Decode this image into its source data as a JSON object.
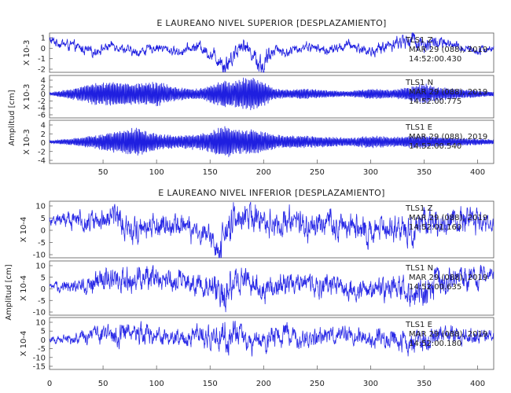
{
  "figures": [
    {
      "id": "superior",
      "title": "E LAUREANO NIVEL SUPERIOR [DESPLAZAMIENTO]",
      "ylabel": "Amplitud [cm]",
      "x_ticks": [
        "50",
        "100",
        "150",
        "200",
        "250",
        "300",
        "350",
        "400"
      ],
      "panels": [
        {
          "station": "TLS1",
          "channel": "Z",
          "date": "MAR 29 (088), 2019",
          "time": "14:52:00.430",
          "scale": "X 10-3",
          "y_ticks": [
            "1",
            "0",
            "-1",
            "-2"
          ]
        },
        {
          "station": "TLS1",
          "channel": "N",
          "date": "MAR 29 (088), 2019",
          "time": "14:52:00.775",
          "scale": "X 10-3",
          "y_ticks": [
            "4",
            "2",
            "0",
            "-2",
            "-4",
            "-6"
          ]
        },
        {
          "station": "TLS1",
          "channel": "E",
          "date": "MAR 29 (088), 2019",
          "time": "14:52:00.540",
          "scale": "X 10-3",
          "y_ticks": [
            "4",
            "2",
            "0",
            "-2",
            "-4"
          ]
        }
      ]
    },
    {
      "id": "inferior",
      "title": "E LAUREANO NIVEL INFERIOR [DESPLAZAMIENTO]",
      "ylabel": "Amplitud [cm]",
      "x_ticks": [
        "0",
        "50",
        "100",
        "150",
        "200",
        "250",
        "300",
        "350",
        "400"
      ],
      "panels": [
        {
          "station": "TLS1",
          "channel": "Z",
          "date": "MAR 29 (088), 2019",
          "time": "14:52:01.160",
          "scale": "X 10-4",
          "y_ticks": [
            "10",
            "5",
            "0",
            "-5",
            "-10"
          ]
        },
        {
          "station": "TLS1",
          "channel": "N",
          "date": "MAR 29 (088), 2019",
          "time": "14:52:00.635",
          "scale": "X 10-4",
          "y_ticks": [
            "10",
            "5",
            "0",
            "-5",
            "-10"
          ]
        },
        {
          "station": "TLS1",
          "channel": "E",
          "date": "MAR 29 (088), 2019",
          "time": "14:52:00.180",
          "scale": "X 10-4",
          "y_ticks": [
            "10",
            "5",
            "0",
            "-5",
            "-10",
            "-15"
          ]
        }
      ]
    }
  ],
  "chart_data": [
    {
      "type": "line",
      "title": "E LAUREANO NIVEL SUPERIOR [DESPLAZAMIENTO]",
      "ylabel": "Amplitud [cm]",
      "xlim": [
        0,
        415
      ],
      "series": [
        {
          "name": "TLS1 Z",
          "ylim": [
            -2.2,
            1.5
          ],
          "color": "#1f1fe0",
          "x": [
            0,
            20,
            40,
            60,
            80,
            100,
            120,
            140,
            150,
            160,
            165,
            170,
            180,
            190,
            200,
            210,
            220,
            240,
            260,
            280,
            300,
            320,
            340,
            350,
            360,
            380,
            400,
            415
          ],
          "y": [
            0.8,
            0.3,
            -0.3,
            0.4,
            -0.4,
            0.2,
            -0.3,
            0.3,
            -0.5,
            -1.0,
            -1.6,
            -0.8,
            0.6,
            -0.5,
            -1.8,
            0.2,
            -0.4,
            0.3,
            -0.2,
            0.4,
            -0.3,
            0.5,
            0.9,
            0.4,
            0.6,
            0.2,
            -0.1,
            0.0
          ],
          "envelope": [
            0.3,
            0.35,
            0.3,
            0.3,
            0.3,
            0.3,
            0.3,
            0.35,
            0.4,
            0.6,
            0.8,
            0.6,
            0.5,
            0.5,
            0.8,
            0.4,
            0.3,
            0.3,
            0.3,
            0.3,
            0.35,
            0.4,
            0.6,
            0.5,
            0.5,
            0.3,
            0.3,
            0.2
          ]
        },
        {
          "name": "TLS1 N",
          "ylim": [
            -6.5,
            5
          ],
          "color": "#1f1fe0",
          "x": [
            0,
            20,
            40,
            60,
            80,
            100,
            120,
            140,
            150,
            160,
            165,
            170,
            180,
            190,
            200,
            210,
            220,
            240,
            260,
            280,
            300,
            320,
            340,
            350,
            360,
            380,
            400,
            415
          ],
          "y": [
            0,
            0,
            0,
            0,
            0,
            0,
            0,
            0,
            0,
            0,
            0,
            0,
            0,
            0,
            0,
            0,
            0,
            0,
            0,
            0,
            0,
            0,
            0,
            0,
            0,
            0,
            0,
            0
          ],
          "envelope": [
            0.3,
            1.5,
            3.0,
            3.5,
            3.0,
            3.5,
            1.8,
            1.5,
            2.5,
            3.5,
            4.5,
            3.5,
            4.5,
            4.8,
            3.5,
            1.5,
            1.2,
            1.5,
            1.0,
            0.8,
            1.5,
            1.2,
            2.2,
            3.0,
            2.0,
            1.5,
            1.0,
            0.6
          ]
        },
        {
          "name": "TLS1 E",
          "ylim": [
            -5,
            5
          ],
          "color": "#1f1fe0",
          "x": [
            0,
            20,
            40,
            60,
            80,
            100,
            120,
            140,
            150,
            160,
            165,
            170,
            180,
            190,
            200,
            210,
            220,
            240,
            260,
            280,
            300,
            320,
            340,
            350,
            360,
            380,
            400,
            415
          ],
          "y": [
            0,
            0,
            0,
            0,
            0,
            0,
            0,
            0,
            0,
            0,
            0,
            0,
            0,
            0,
            0,
            0,
            0,
            0,
            0,
            0,
            0,
            0,
            0,
            0,
            0,
            0,
            0,
            0
          ],
          "envelope": [
            0.3,
            0.8,
            1.5,
            2.5,
            3.5,
            2.0,
            1.5,
            2.0,
            2.5,
            3.5,
            4.0,
            3.0,
            3.0,
            3.0,
            2.5,
            1.8,
            1.5,
            1.5,
            1.2,
            1.0,
            1.5,
            1.2,
            1.5,
            1.6,
            1.2,
            1.0,
            0.8,
            0.5
          ]
        }
      ]
    },
    {
      "type": "line",
      "title": "E LAUREANO NIVEL INFERIOR [DESPLAZAMIENTO]",
      "ylabel": "Amplitud [cm]",
      "xlim": [
        0,
        415
      ],
      "series": [
        {
          "name": "TLS1 Z",
          "ylim": [
            -12,
            10
          ],
          "color": "#2a2ae6",
          "x": [
            0,
            20,
            40,
            60,
            80,
            100,
            120,
            140,
            150,
            160,
            165,
            170,
            180,
            190,
            200,
            210,
            220,
            240,
            260,
            280,
            300,
            320,
            340,
            350,
            360,
            380,
            400,
            415
          ],
          "y": [
            3,
            3,
            2,
            5,
            -1,
            1,
            0,
            -2,
            -4,
            -8,
            0,
            2,
            3,
            4,
            2,
            1,
            3,
            0,
            2,
            1,
            -2,
            1,
            -3,
            2,
            0,
            3,
            2,
            1
          ],
          "envelope": [
            1.5,
            2.5,
            3,
            3.5,
            3.5,
            3,
            3,
            3,
            3.5,
            4,
            5,
            5,
            4,
            4,
            4,
            3.5,
            3.5,
            3.5,
            3.5,
            3.5,
            3.5,
            3.5,
            4,
            4,
            4,
            3.5,
            3.5,
            2
          ]
        },
        {
          "name": "TLS1 N",
          "ylim": [
            -12,
            10
          ],
          "color": "#2a2ae6",
          "x": [
            0,
            20,
            40,
            60,
            80,
            100,
            120,
            140,
            150,
            160,
            165,
            170,
            180,
            190,
            200,
            210,
            220,
            240,
            260,
            280,
            300,
            320,
            340,
            350,
            360,
            380,
            400,
            415
          ],
          "y": [
            -1,
            0,
            1,
            3,
            2,
            4,
            2,
            0,
            0,
            -2,
            -4,
            1,
            2,
            0,
            -2,
            0,
            0,
            1,
            0,
            -1,
            -2,
            0,
            -3,
            -5,
            2,
            3,
            4,
            4
          ],
          "envelope": [
            1,
            2,
            3,
            3.5,
            3.5,
            3.5,
            3,
            3,
            3.5,
            4.5,
            6,
            5,
            4,
            3.5,
            3.5,
            3.5,
            3.5,
            3,
            3,
            3,
            3,
            3.5,
            4,
            4.5,
            4,
            3.5,
            3.5,
            2
          ]
        },
        {
          "name": "TLS1 E",
          "ylim": [
            -16,
            10
          ],
          "color": "#2a2ae6",
          "x": [
            0,
            20,
            40,
            60,
            80,
            100,
            120,
            140,
            150,
            160,
            165,
            170,
            180,
            190,
            200,
            210,
            220,
            240,
            260,
            280,
            300,
            320,
            340,
            350,
            360,
            380,
            400,
            415
          ],
          "y": [
            -1,
            -1,
            2,
            1,
            2,
            0,
            1,
            2,
            0,
            -2,
            3,
            2,
            -1,
            -3,
            -1,
            0,
            2,
            -1,
            1,
            2,
            -1,
            0,
            -3,
            -2,
            1,
            2,
            1,
            0
          ],
          "envelope": [
            1,
            2,
            3,
            3.5,
            3.5,
            3,
            3,
            3.5,
            4,
            5,
            7,
            5,
            4,
            3.5,
            3.5,
            3.5,
            3.5,
            3.5,
            3,
            3,
            3.5,
            3.5,
            4,
            4,
            3.5,
            3,
            3,
            2
          ]
        }
      ]
    }
  ]
}
